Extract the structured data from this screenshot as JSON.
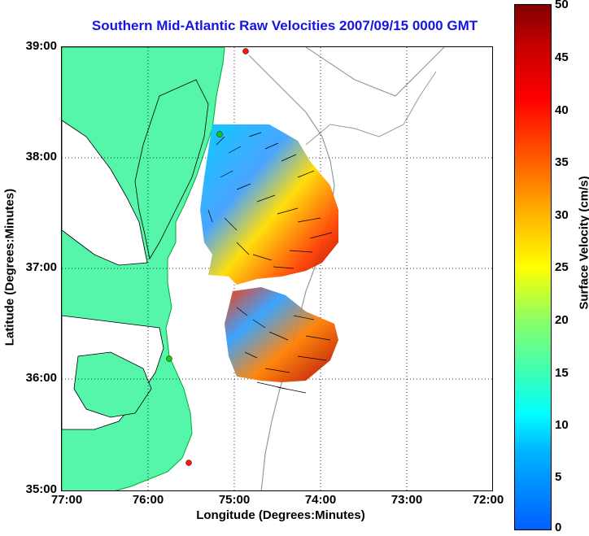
{
  "title": "Southern Mid-Atlantic Raw Velocities 2007/09/15 0000 GMT",
  "x_axis": {
    "label": "Longitude (Degrees:Minutes)",
    "ticks": [
      "77:00",
      "76:00",
      "75:00",
      "74:00",
      "73:00",
      "72:00"
    ]
  },
  "y_axis": {
    "label": "Latitude (Degrees:Minutes)",
    "ticks": [
      "39:00",
      "38:00",
      "37:00",
      "36:00",
      "35:00"
    ]
  },
  "colorbar": {
    "label": "Surface Velocity (cm/s)",
    "ticks": [
      "50",
      "45",
      "40",
      "35",
      "30",
      "25",
      "20",
      "15",
      "10",
      "5",
      "0"
    ],
    "min": 0,
    "max": 50
  },
  "colors": {
    "land": "#55f5aa",
    "title": "#1414e6",
    "station_red": "#ff1414",
    "station_green": "#14c814"
  }
}
